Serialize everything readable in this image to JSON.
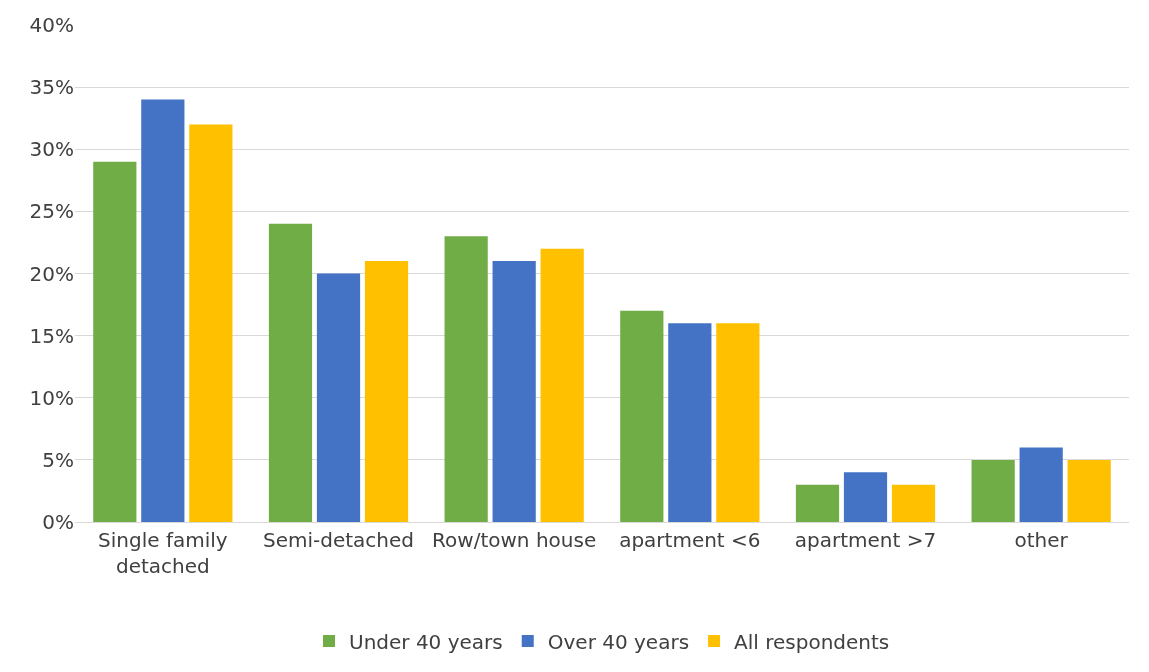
{
  "chart_data": {
    "type": "bar",
    "categories": [
      "Single family detached",
      "Semi-detached",
      "Row/town house",
      "apartment <6",
      "apartment >7",
      "other"
    ],
    "series": [
      {
        "name": "Under 40 years",
        "color": "#70ad47",
        "values": [
          29,
          24,
          23,
          17,
          3,
          5
        ]
      },
      {
        "name": "Over 40 years",
        "color": "#4472c4",
        "values": [
          34,
          20,
          21,
          16,
          4,
          6
        ]
      },
      {
        "name": "All respondents",
        "color": "#ffc000",
        "values": [
          32,
          21,
          22,
          16,
          3,
          5
        ]
      }
    ],
    "ylim": [
      0,
      40
    ],
    "yticks": [
      {
        "value": 0,
        "label": "0%"
      },
      {
        "value": 5,
        "label": "5%"
      },
      {
        "value": 10,
        "label": "10%"
      },
      {
        "value": 15,
        "label": "15%"
      },
      {
        "value": 20,
        "label": "20%"
      },
      {
        "value": 25,
        "label": "25%"
      },
      {
        "value": 30,
        "label": "30%"
      },
      {
        "value": 35,
        "label": "35%"
      },
      {
        "value": 40,
        "label": "40%"
      }
    ],
    "grid": "y",
    "legend": "bottom"
  }
}
